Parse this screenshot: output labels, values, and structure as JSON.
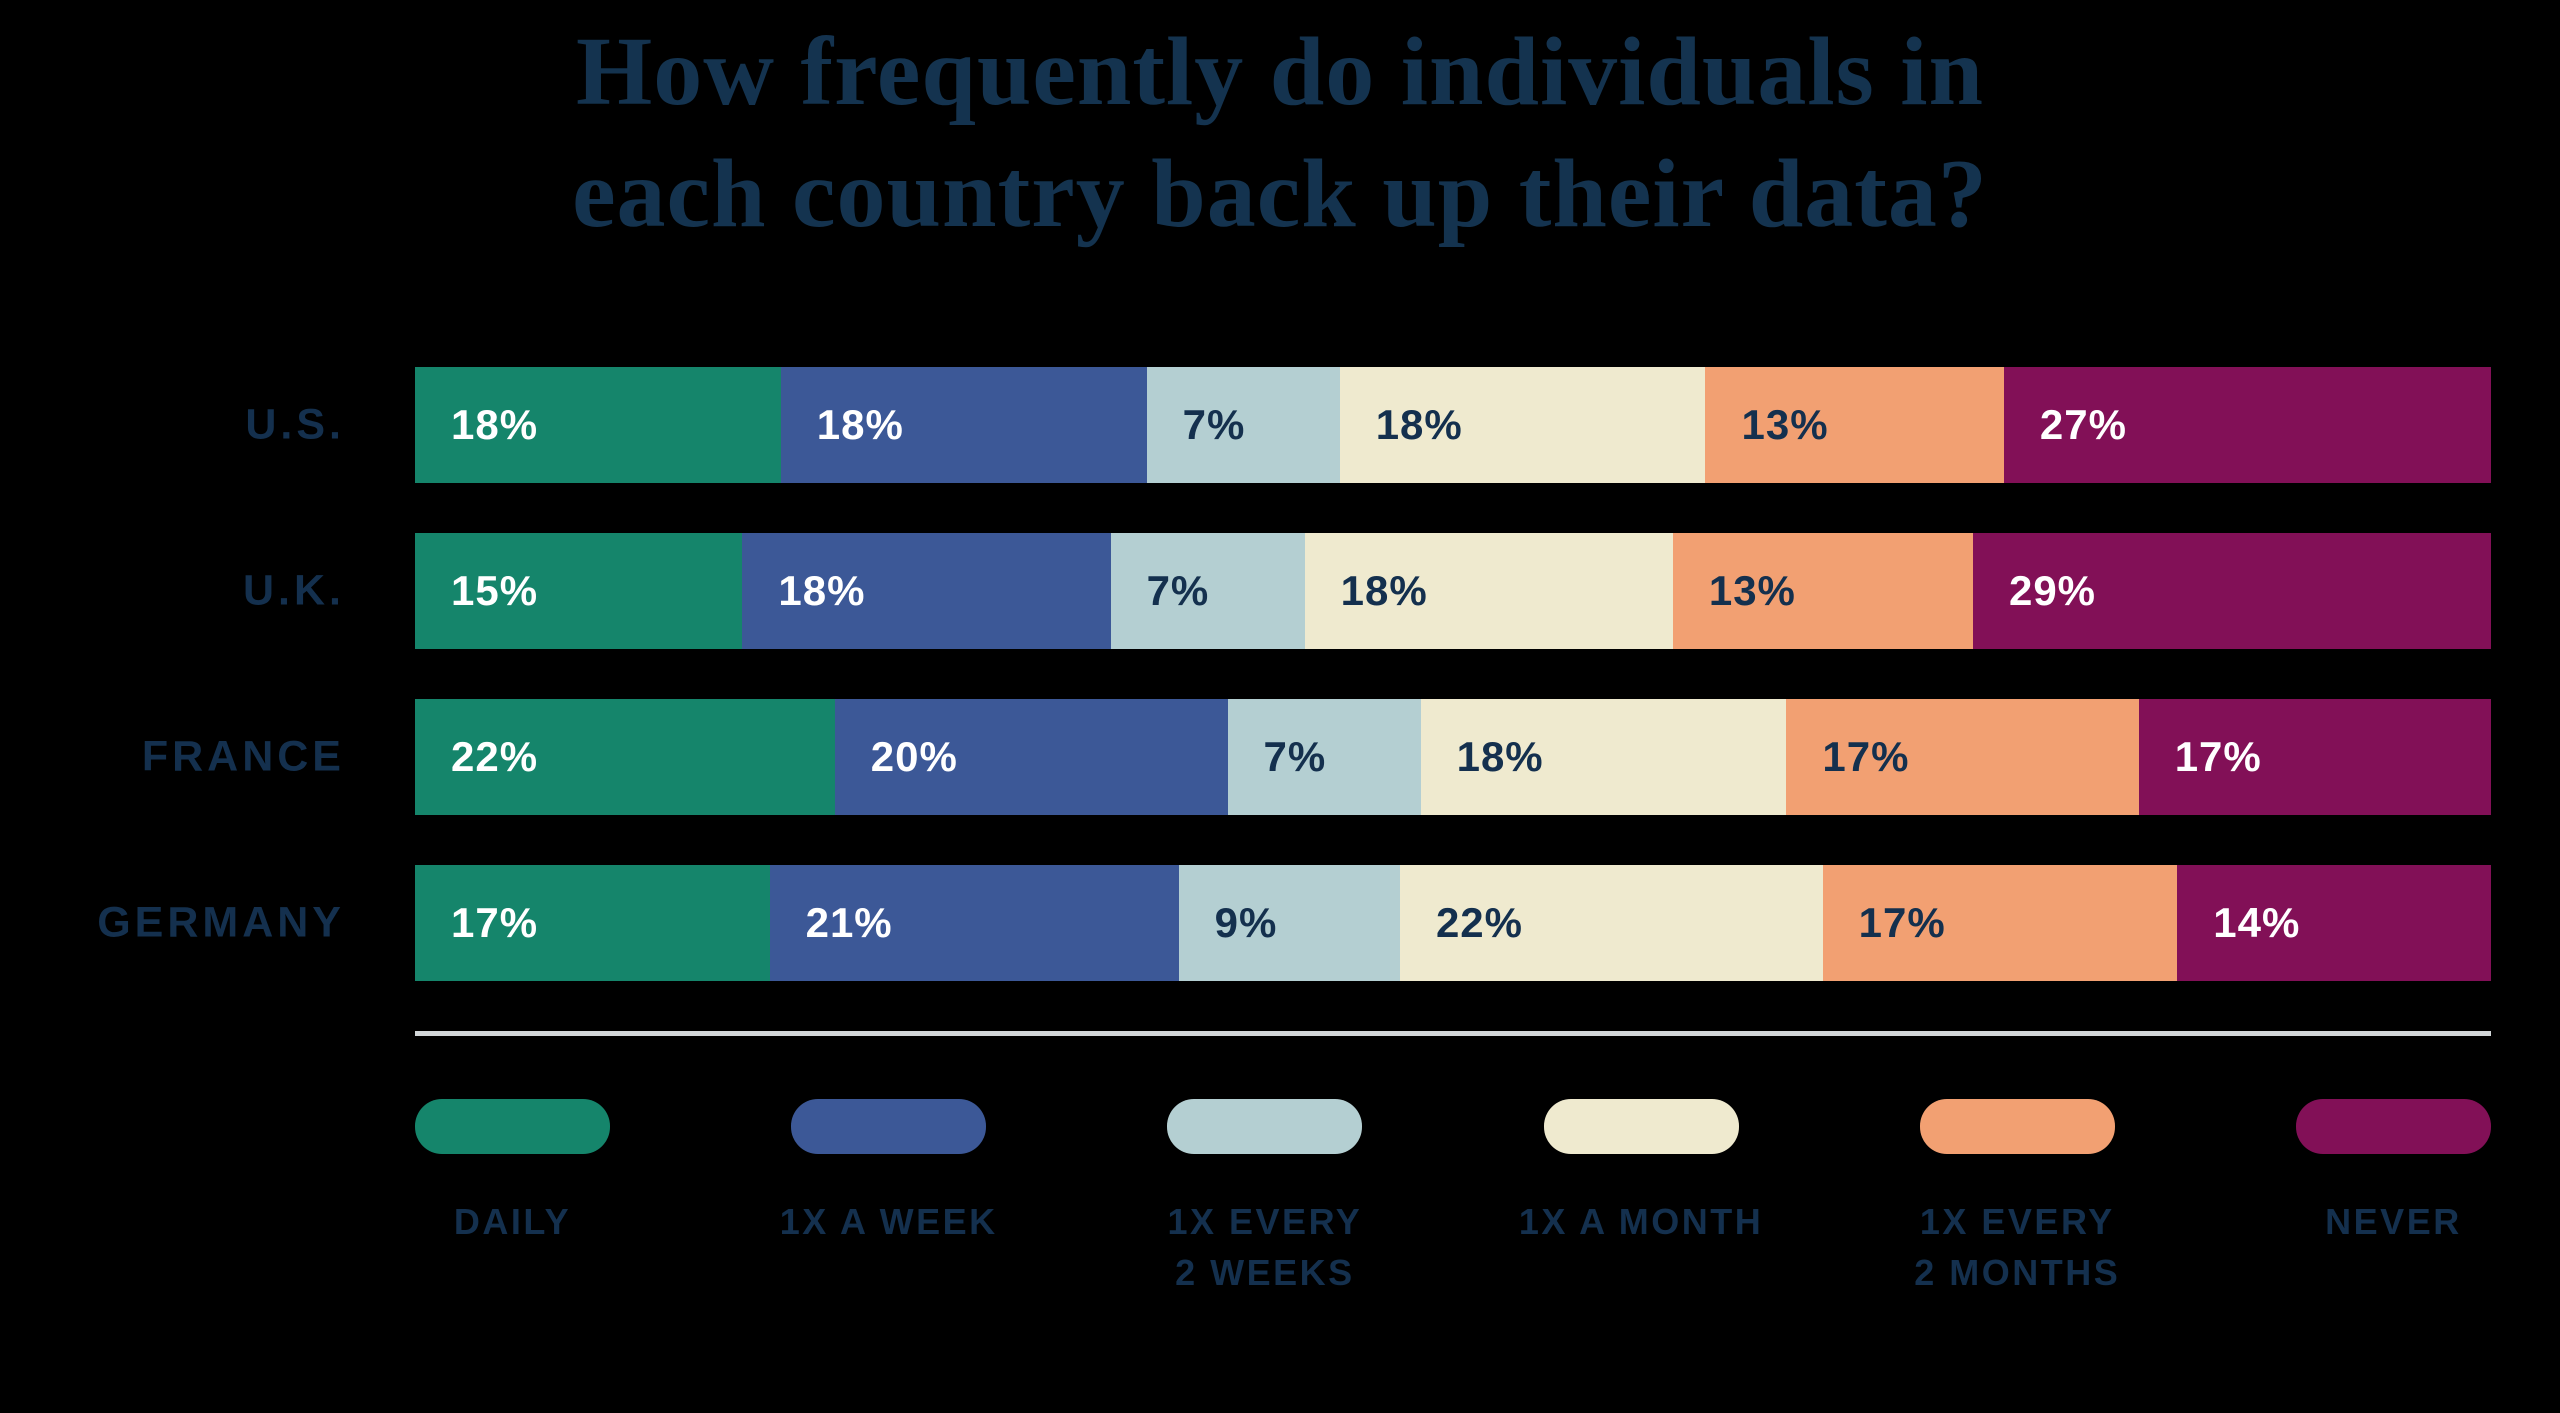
{
  "title": {
    "line1": "How frequently do individuals in",
    "line2": "each country back up their data?"
  },
  "colors": {
    "background": "#000000",
    "title_text": "#14334F",
    "row_label_text": "#14304E",
    "divider": "#D2D6D8",
    "legend_label_text": "#14304E"
  },
  "chart_data": {
    "type": "bar",
    "orientation": "horizontal-stacked",
    "unit": "%",
    "grid": false,
    "legend_position": "bottom",
    "value_label_format": "{v}%",
    "categories": [
      "U.S.",
      "U.K.",
      "FRANCE",
      "GERMANY"
    ],
    "series": [
      {
        "name": "DAILY",
        "legend_lines": [
          "DAILY"
        ],
        "color": "#15856B",
        "text_color": "#FFFFFF",
        "values": [
          18,
          15,
          22,
          17
        ]
      },
      {
        "name": "1X A WEEK",
        "legend_lines": [
          "1X A WEEK"
        ],
        "color": "#3C5897",
        "text_color": "#FFFFFF",
        "values": [
          18,
          18,
          20,
          21
        ]
      },
      {
        "name": "1X EVERY 2 WEEKS",
        "legend_lines": [
          "1X EVERY",
          "2 WEEKS"
        ],
        "color": "#B4CFD2",
        "text_color": "#14304E",
        "values": [
          7,
          7,
          7,
          9
        ]
      },
      {
        "name": "1X A MONTH",
        "legend_lines": [
          "1X A MONTH"
        ],
        "color": "#EFEACF",
        "text_color": "#14304E",
        "values": [
          18,
          18,
          18,
          22
        ]
      },
      {
        "name": "1X EVERY 2 MONTHS",
        "legend_lines": [
          "1X EVERY",
          "2 MONTHS"
        ],
        "color": "#F2A072",
        "text_color": "#14304E",
        "values": [
          13,
          13,
          17,
          17
        ]
      },
      {
        "name": "NEVER",
        "legend_lines": [
          "NEVER"
        ],
        "color": "#821057",
        "text_color": "#FFFFFF",
        "values": [
          27,
          29,
          17,
          14
        ]
      }
    ]
  }
}
